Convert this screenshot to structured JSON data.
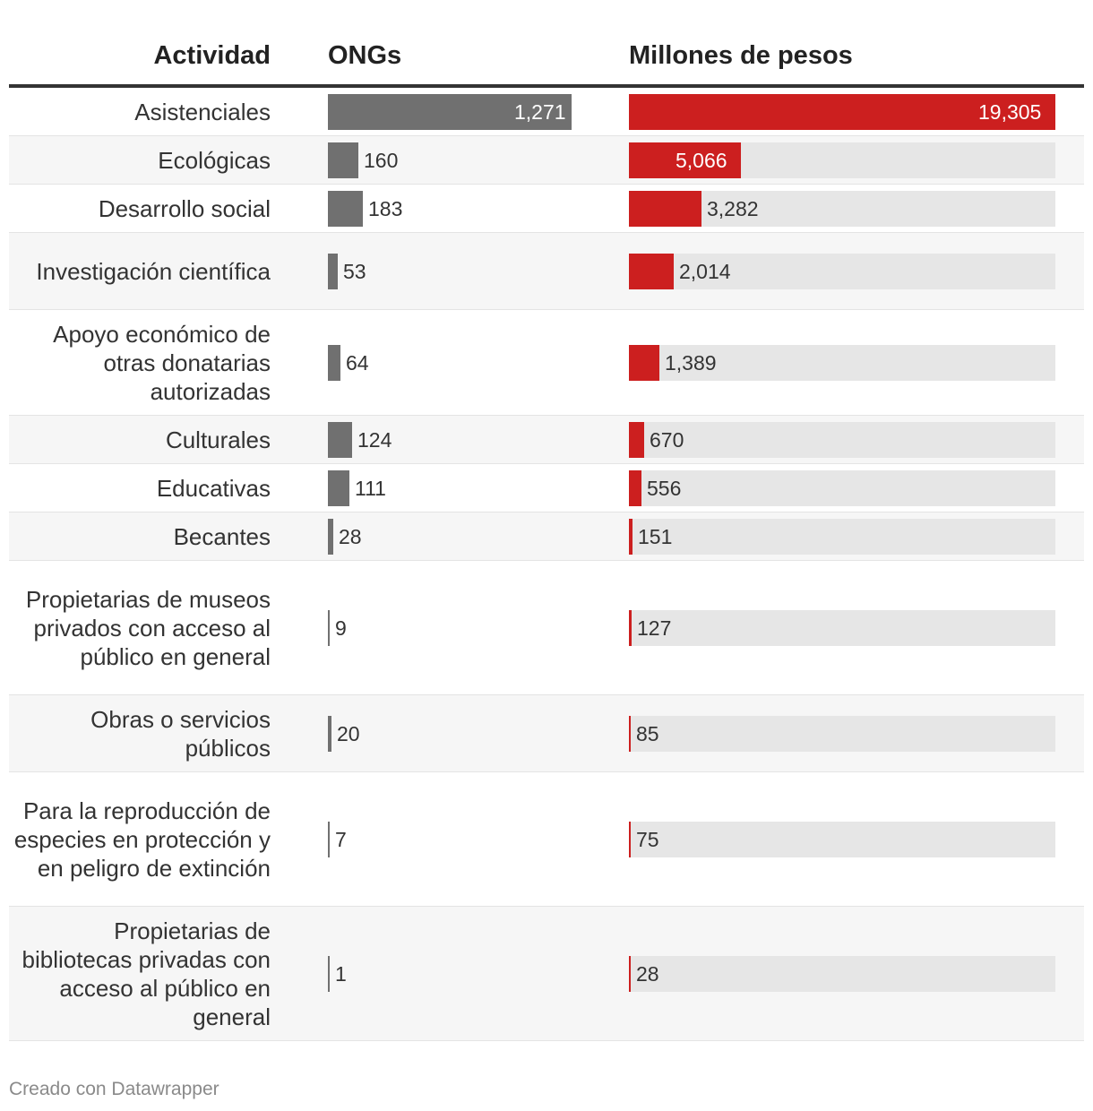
{
  "headers": {
    "actividad": "Actividad",
    "ongs": "ONGs",
    "millones": "Millones de pesos"
  },
  "colors": {
    "ongs_bar": "#707070",
    "millones_bar": "#cc1f1f",
    "track": "#e6e6e6"
  },
  "chart_data": {
    "type": "bar",
    "title": "",
    "series": [
      {
        "name": "ONGs",
        "values": [
          1271,
          160,
          183,
          53,
          64,
          124,
          111,
          28,
          9,
          20,
          7,
          1
        ]
      },
      {
        "name": "Millones de pesos",
        "values": [
          19305,
          5066,
          3282,
          2014,
          1389,
          670,
          556,
          151,
          127,
          85,
          75,
          28
        ]
      }
    ],
    "categories": [
      "Asistenciales",
      "Ecológicas",
      "Desarrollo social",
      "Investigación científica",
      "Apoyo económico de otras donatarias autorizadas",
      "Culturales",
      "Educativas",
      "Becantes",
      "Propietarias de museos privados con acceso al público en general",
      "Obras o servicios públicos",
      "Para la reproducción de especies en protección y en peligro de extinción",
      "Propietarias de bibliotecas privadas con acceso al público en general"
    ],
    "rows": [
      {
        "label": "Asistenciales",
        "ongs": 1271,
        "ongs_label": "1,271",
        "millones": 19305,
        "millones_label": "19,305"
      },
      {
        "label": "Ecológicas",
        "ongs": 160,
        "ongs_label": "160",
        "millones": 5066,
        "millones_label": "5,066"
      },
      {
        "label": "Desarrollo social",
        "ongs": 183,
        "ongs_label": "183",
        "millones": 3282,
        "millones_label": "3,282"
      },
      {
        "label": "Investigación científica",
        "ongs": 53,
        "ongs_label": "53",
        "millones": 2014,
        "millones_label": "2,014"
      },
      {
        "label": "Apoyo económico de otras donatarias autorizadas",
        "ongs": 64,
        "ongs_label": "64",
        "millones": 1389,
        "millones_label": "1,389"
      },
      {
        "label": "Culturales",
        "ongs": 124,
        "ongs_label": "124",
        "millones": 670,
        "millones_label": "670"
      },
      {
        "label": "Educativas",
        "ongs": 111,
        "ongs_label": "111",
        "millones": 556,
        "millones_label": "556"
      },
      {
        "label": "Becantes",
        "ongs": 28,
        "ongs_label": "28",
        "millones": 151,
        "millones_label": "151"
      },
      {
        "label": "Propietarias de museos privados con acceso al público en general",
        "ongs": 9,
        "ongs_label": "9",
        "millones": 127,
        "millones_label": "127"
      },
      {
        "label": "Obras o servicios públicos",
        "ongs": 20,
        "ongs_label": "20",
        "millones": 85,
        "millones_label": "85"
      },
      {
        "label": "Para la reproducción de especies en protección y en peligro de extinción",
        "ongs": 7,
        "ongs_label": "7",
        "millones": 75,
        "millones_label": "75"
      },
      {
        "label": "Propietarias de bibliotecas privadas con acceso al público en general",
        "ongs": 1,
        "ongs_label": "1",
        "millones": 28,
        "millones_label": "28"
      }
    ]
  },
  "footer": {
    "credit": "Creado con Datawrapper"
  }
}
